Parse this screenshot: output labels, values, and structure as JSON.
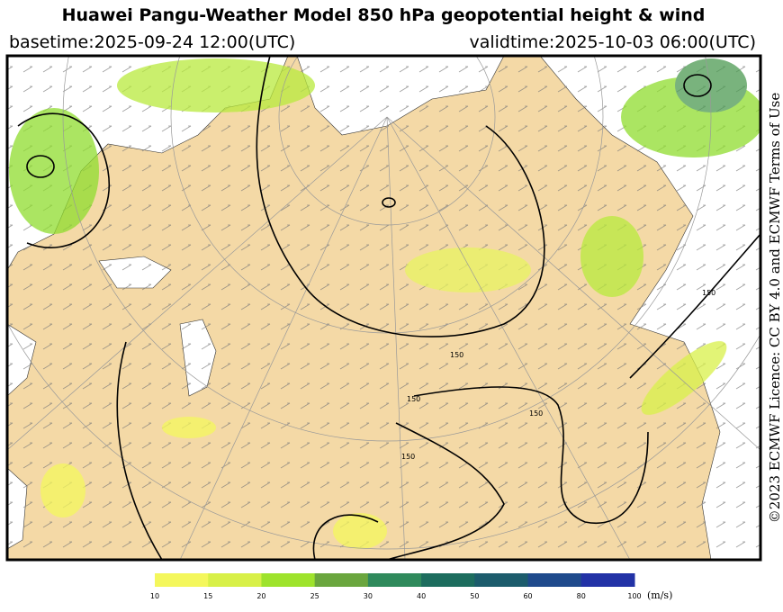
{
  "header": {
    "title": "Huawei Pangu-Weather Model 850 hPa geopotential height & wind",
    "basetime": "basetime:2025-09-24 12:00(UTC)",
    "validtime": "validtime:2025-10-03 06:00(UTC)"
  },
  "map": {
    "contour_labels": [
      "150",
      "150",
      "150",
      "150",
      "150"
    ]
  },
  "colorbar": {
    "ticks": [
      10,
      15,
      20,
      25,
      30,
      40,
      50,
      60,
      80,
      100
    ],
    "colors": [
      "#f4f75c",
      "#d8f048",
      "#9ee32c",
      "#6aa63e",
      "#2f8a5c",
      "#1d6d5e",
      "#1c5c6c",
      "#1f4a8c",
      "#2232a6"
    ],
    "unit": "(m/s)"
  },
  "license": "©2023 ECMWF Licence: CC BY 4.0 and ECMWF Terms of Use"
}
